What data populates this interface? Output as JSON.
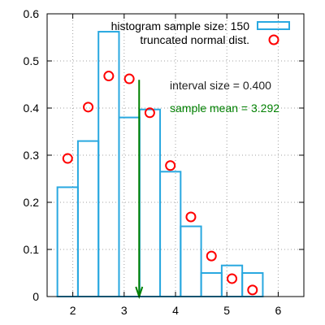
{
  "chart_data": {
    "type": "bar",
    "title": "",
    "xlabel": "",
    "ylabel": "",
    "xlim": [
      1.5,
      6.5
    ],
    "ylim": [
      0,
      0.6
    ],
    "grid": true,
    "legend_position": "top-right",
    "x_ticks": [
      2,
      3,
      4,
      5,
      6
    ],
    "x_tick_labels": [
      "2",
      "3",
      "4",
      "5",
      "6"
    ],
    "y_ticks": [
      0,
      0.1,
      0.2,
      0.3,
      0.4,
      0.5,
      0.6
    ],
    "y_tick_labels": [
      "0",
      "0.1",
      "0.2",
      "0.3",
      "0.4",
      "0.5",
      "0.6"
    ],
    "colors": {
      "histogram": "#29a8e0",
      "distribution": "#ff0000",
      "mean": "#008000"
    },
    "series": [
      {
        "name": "histogram sample size: 150",
        "kind": "histogram-bars",
        "bins": [
          {
            "from": 1.7,
            "to": 2.1,
            "value": 0.232
          },
          {
            "from": 2.1,
            "to": 2.5,
            "value": 0.33
          },
          {
            "from": 2.5,
            "to": 2.9,
            "value": 0.562
          },
          {
            "from": 2.9,
            "to": 3.3,
            "value": 0.38
          },
          {
            "from": 3.3,
            "to": 3.7,
            "value": 0.397
          },
          {
            "from": 3.7,
            "to": 4.1,
            "value": 0.265
          },
          {
            "from": 4.1,
            "to": 4.5,
            "value": 0.149
          },
          {
            "from": 4.5,
            "to": 4.9,
            "value": 0.05
          },
          {
            "from": 4.9,
            "to": 5.3,
            "value": 0.066
          },
          {
            "from": 5.3,
            "to": 5.7,
            "value": 0.05
          }
        ]
      },
      {
        "name": "truncated normal dist.",
        "kind": "scatter-circles",
        "points": [
          {
            "x": 1.9,
            "y": 0.293
          },
          {
            "x": 2.3,
            "y": 0.402
          },
          {
            "x": 2.7,
            "y": 0.468
          },
          {
            "x": 3.1,
            "y": 0.462
          },
          {
            "x": 3.5,
            "y": 0.39
          },
          {
            "x": 3.9,
            "y": 0.278
          },
          {
            "x": 4.3,
            "y": 0.169
          },
          {
            "x": 4.7,
            "y": 0.086
          },
          {
            "x": 5.1,
            "y": 0.038
          },
          {
            "x": 5.5,
            "y": 0.014
          }
        ]
      }
    ],
    "annotations": {
      "interval": "interval size = 0.400",
      "mean": "sample mean = 3.292",
      "mean_arrow": {
        "x": 3.292,
        "y_from": 0.46,
        "y_to": 0
      }
    }
  }
}
